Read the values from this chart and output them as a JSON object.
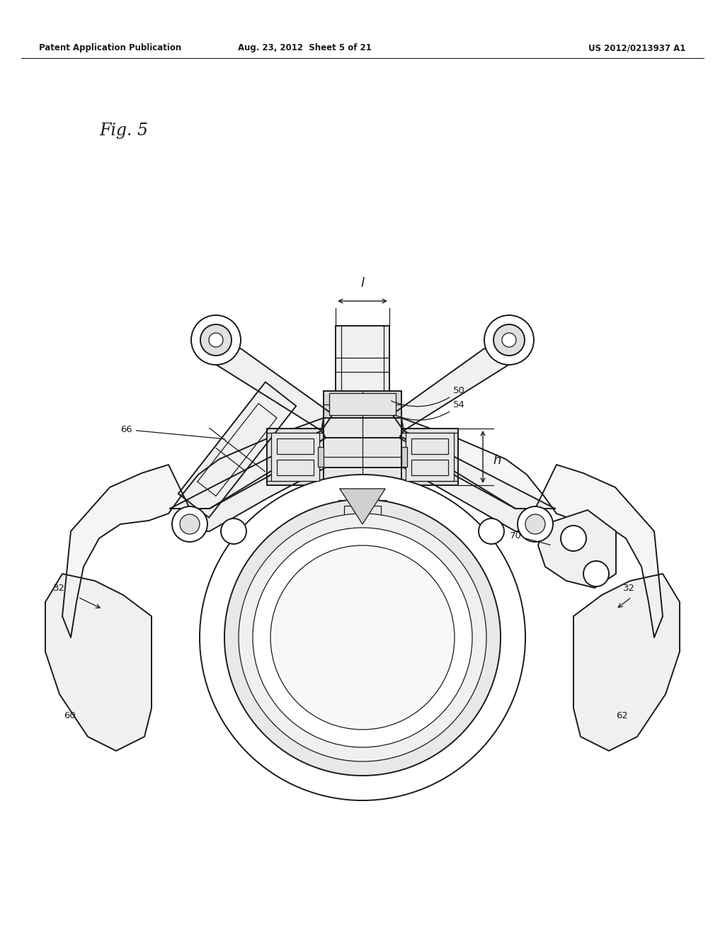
{
  "header_left": "Patent Application Publication",
  "header_mid": "Aug. 23, 2012  Sheet 5 of 21",
  "header_right": "US 2012/0213937 A1",
  "fig_label": "Fig. 5",
  "background_color": "#ffffff",
  "line_color": "#1a1a1a",
  "header_fontsize": 8.5,
  "fig_label_fontsize": 17,
  "annotation_fontsize": 9.5
}
